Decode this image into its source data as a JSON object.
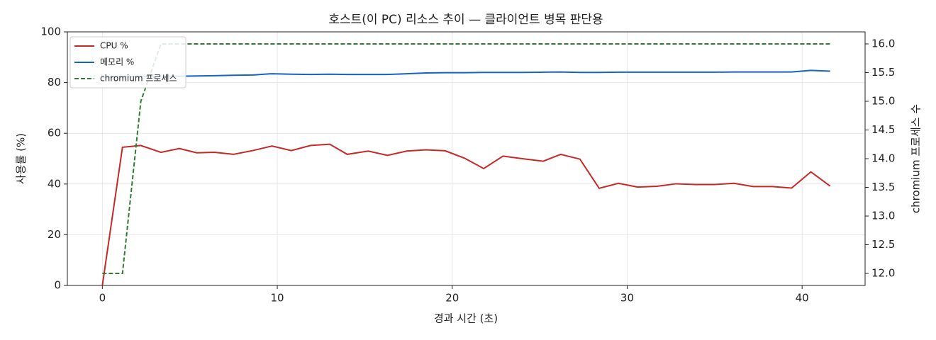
{
  "chart_data": {
    "type": "line",
    "title": "호스트(이 PC) 리소스 추이 — 클라이언트 병목 판단용",
    "xlabel": "경과 시간 (초)",
    "ylabel": "사용률 (%)",
    "y2label": "chromium 프로세스 수",
    "x": [
      0,
      1.15,
      2.2,
      3.35,
      4.4,
      5.4,
      6.4,
      7.5,
      8.6,
      9.7,
      10.8,
      11.9,
      13.0,
      14.0,
      15.2,
      16.3,
      17.4,
      18.5,
      19.6,
      20.7,
      21.8,
      22.9,
      24.0,
      25.2,
      26.2,
      27.3,
      28.4,
      29.5,
      30.6,
      31.7,
      32.8,
      33.9,
      35.0,
      36.1,
      37.2,
      38.3,
      39.4,
      40.5,
      41.6
    ],
    "series": [
      {
        "name": "CPU %",
        "color": "#c62828",
        "values": [
          0,
          54.5,
          55.2,
          52.5,
          54.0,
          52.3,
          52.5,
          51.7,
          53.2,
          55.0,
          53.2,
          55.2,
          55.7,
          51.7,
          53.0,
          51.3,
          53.0,
          53.5,
          53.1,
          50.2,
          46.1,
          51.0,
          50.0,
          49.0,
          51.7,
          49.8,
          38.3,
          40.3,
          38.8,
          39.1,
          40.1,
          39.8,
          39.8,
          40.3,
          39.0,
          39.0,
          38.4,
          44.8,
          39.2
        ]
      },
      {
        "name": "메모리 %",
        "color": "#1565c0",
        "values": [
          82.0,
          82.3,
          82.4,
          82.5,
          82.5,
          82.6,
          82.7,
          82.9,
          83.0,
          83.5,
          83.3,
          83.2,
          83.3,
          83.2,
          83.2,
          83.2,
          83.5,
          83.8,
          83.9,
          83.9,
          84.0,
          84.0,
          84.0,
          84.1,
          84.2,
          84.0,
          84.0,
          84.1,
          84.1,
          84.1,
          84.1,
          84.1,
          84.1,
          84.2,
          84.2,
          84.2,
          84.2,
          84.8,
          84.5
        ]
      },
      {
        "name": "chromium 프로세스",
        "color": "#2e7d32",
        "dashed": true,
        "axis": "y2",
        "values": [
          12,
          12,
          15,
          16,
          16,
          16,
          16,
          16,
          16,
          16,
          16,
          16,
          16,
          16,
          16,
          16,
          16,
          16,
          16,
          16,
          16,
          16,
          16,
          16,
          16,
          16,
          16,
          16,
          16,
          16,
          16,
          16,
          16,
          16,
          16,
          16,
          16,
          16,
          16
        ]
      }
    ],
    "xlim": [
      -2,
      43.6
    ],
    "xticks": [
      0,
      10,
      20,
      30,
      40
    ],
    "ylim": [
      0,
      100
    ],
    "yticks": [
      0,
      20,
      40,
      60,
      80,
      100
    ],
    "y2lim": [
      11.79,
      16.21
    ],
    "y2ticks": [
      {
        "value": 12,
        "label": "12.0"
      },
      12.5,
      {
        "value": 13,
        "label": "13.0"
      },
      13.5,
      {
        "value": 14,
        "label": "14.0"
      },
      14.5,
      {
        "value": 15,
        "label": "15.0"
      },
      15.5,
      {
        "value": 16,
        "label": "16.0"
      }
    ],
    "grid": true,
    "legend": "upper left"
  }
}
